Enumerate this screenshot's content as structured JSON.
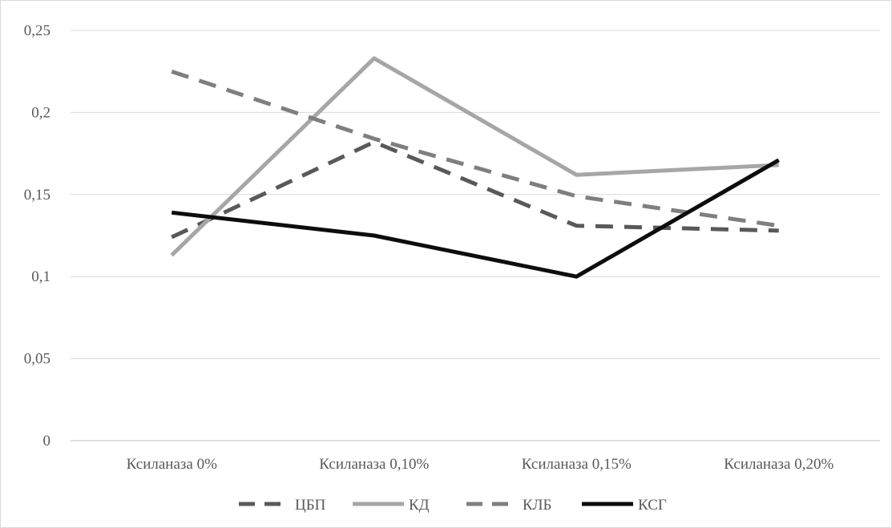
{
  "chart_data": {
    "type": "line",
    "title": "",
    "xlabel": "",
    "ylabel": "",
    "categories": [
      "Ксиланаза 0%",
      "Ксиланаза 0,10%",
      "Ксиланаза 0,15%",
      "Ксиланаза 0,20%"
    ],
    "ylim": [
      0,
      0.25
    ],
    "yticks": [
      0,
      0.05,
      0.1,
      0.15,
      0.2,
      0.25
    ],
    "ytick_labels": [
      "0",
      "0,05",
      "0,1",
      "0,15",
      "0,2",
      "0,25"
    ],
    "grid": true,
    "legend_position": "bottom",
    "series": [
      {
        "name": "ЦБП",
        "values": [
          0.124,
          0.182,
          0.131,
          0.128
        ],
        "color": "#595959",
        "style": "dashed"
      },
      {
        "name": "КД",
        "values": [
          0.113,
          0.233,
          0.162,
          0.168
        ],
        "color": "#a6a6a6",
        "style": "solid"
      },
      {
        "name": "КЛБ",
        "values": [
          0.225,
          0.184,
          0.149,
          0.131
        ],
        "color": "#7f7f7f",
        "style": "dashed"
      },
      {
        "name": "КСГ",
        "values": [
          0.139,
          0.125,
          0.1,
          0.171
        ],
        "color": "#0d0d0d",
        "style": "solid"
      }
    ]
  }
}
